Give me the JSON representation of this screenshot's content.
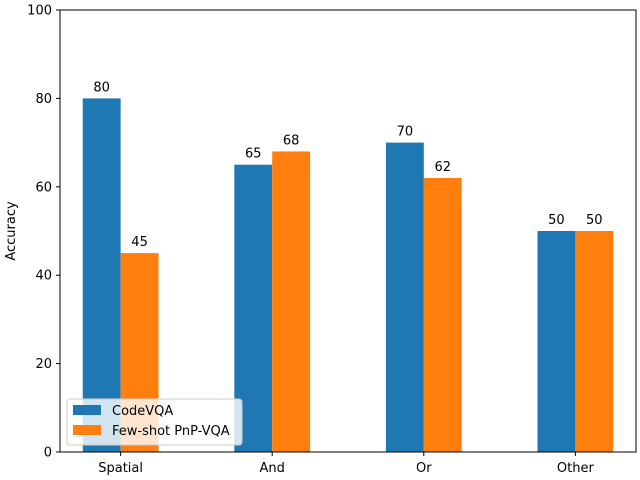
{
  "chart_data": {
    "type": "bar",
    "categories": [
      "Spatial",
      "And",
      "Or",
      "Other"
    ],
    "series": [
      {
        "name": "CodeVQA",
        "values": [
          80,
          65,
          70,
          50
        ],
        "color": "#1f77b4"
      },
      {
        "name": "Few-shot PnP-VQA",
        "values": [
          45,
          68,
          62,
          50
        ],
        "color": "#ff7f0e"
      }
    ],
    "title": "",
    "xlabel": "",
    "ylabel": "Accuracy",
    "ylim": [
      0,
      100
    ],
    "yticks": [
      0,
      20,
      40,
      60,
      80,
      100
    ],
    "grid": false,
    "legend_position": "bottom-left",
    "show_data_labels": true
  }
}
